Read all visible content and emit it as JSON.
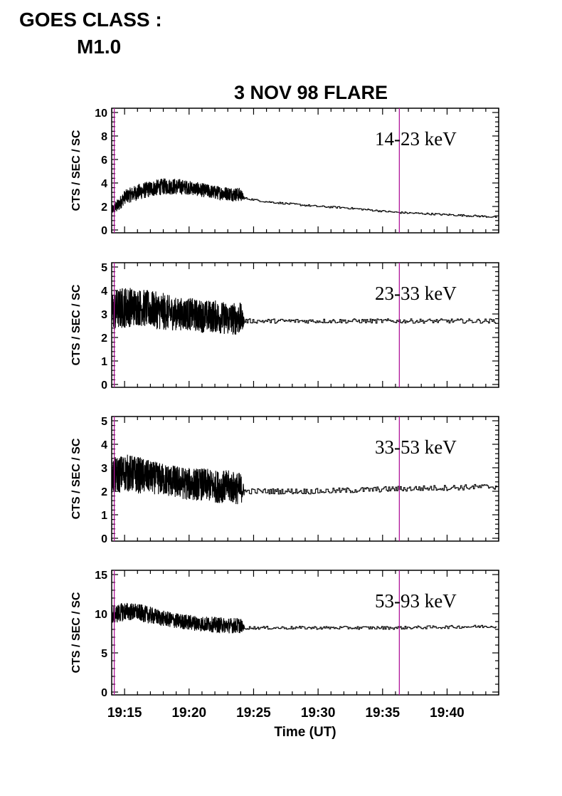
{
  "goes": {
    "line1": "GOES CLASS :",
    "line2": "M1.0"
  },
  "chart_data": {
    "type": "line",
    "title": "3 NOV 98 FLARE",
    "xlabel": "Time (UT)",
    "ylabel": "CTS / SEC / SC",
    "x_unit": "UT time (hh:mm)",
    "xlim": [
      "19:14",
      "19:44"
    ],
    "xticks": [
      "19:15",
      "19:20",
      "19:25",
      "19:30",
      "19:35",
      "19:40"
    ],
    "vertical_markers": [
      "19:14.2",
      "19:36.3"
    ],
    "marker_color": "#b0169a",
    "line_color": "#000000",
    "panels": [
      {
        "band": "14-23 keV",
        "ylim": [
          0,
          10
        ],
        "yticks": [
          "0",
          "2",
          "4",
          "6",
          "8",
          "10"
        ],
        "series": {
          "x": [
            "19:14",
            "19:14.5",
            "19:15",
            "19:16",
            "19:17",
            "19:18",
            "19:19",
            "19:20",
            "19:21",
            "19:22",
            "19:23",
            "19:24",
            "19:24.3",
            "19:26",
            "19:28",
            "19:30",
            "19:32",
            "19:34",
            "19:36",
            "19:38",
            "19:40",
            "19:42",
            "19:43.9"
          ],
          "y": [
            1.7,
            2.1,
            2.8,
            3.2,
            3.5,
            3.7,
            3.7,
            3.6,
            3.4,
            3.2,
            3.1,
            3.0,
            2.7,
            2.4,
            2.2,
            2.0,
            1.9,
            1.7,
            1.5,
            1.4,
            1.3,
            1.2,
            1.1
          ],
          "noise": [
            0.4,
            0.6,
            0.6,
            0.7,
            0.7,
            0.7,
            0.7,
            0.6,
            0.6,
            0.6,
            0.6,
            0.6,
            0.1,
            0.1,
            0.1,
            0.1,
            0.1,
            0.1,
            0.1,
            0.1,
            0.1,
            0.1,
            0.1
          ]
        }
      },
      {
        "band": "23-33 keV",
        "ylim": [
          0,
          5
        ],
        "yticks": [
          "0",
          "1",
          "2",
          "3",
          "4",
          "5"
        ],
        "series": {
          "x": [
            "19:14",
            "19:15",
            "19:16",
            "19:17",
            "19:18",
            "19:19",
            "19:20",
            "19:21",
            "19:22",
            "19:23",
            "19:24",
            "19:24.3",
            "19:30",
            "19:36",
            "19:43.9"
          ],
          "y": [
            3.1,
            3.3,
            3.3,
            3.2,
            3.1,
            3.0,
            3.0,
            2.9,
            2.9,
            2.8,
            2.8,
            2.7,
            2.7,
            2.7,
            2.7
          ],
          "noise": [
            0.9,
            0.9,
            0.8,
            0.8,
            0.8,
            0.7,
            0.7,
            0.7,
            0.7,
            0.7,
            0.7,
            0.12,
            0.12,
            0.12,
            0.12
          ]
        }
      },
      {
        "band": "33-53 keV",
        "ylim": [
          0,
          5
        ],
        "yticks": [
          "0",
          "1",
          "2",
          "3",
          "4",
          "5"
        ],
        "series": {
          "x": [
            "19:14",
            "19:15",
            "19:16",
            "19:17",
            "19:18",
            "19:19",
            "19:20",
            "19:21",
            "19:22",
            "19:23",
            "19:24",
            "19:24.3",
            "19:30",
            "19:36",
            "19:43.9"
          ],
          "y": [
            2.6,
            2.8,
            2.7,
            2.6,
            2.5,
            2.4,
            2.3,
            2.3,
            2.2,
            2.2,
            2.1,
            2.0,
            2.0,
            2.1,
            2.2
          ],
          "noise": [
            0.8,
            0.8,
            0.8,
            0.7,
            0.7,
            0.7,
            0.7,
            0.7,
            0.7,
            0.7,
            0.7,
            0.15,
            0.15,
            0.15,
            0.15
          ]
        }
      },
      {
        "band": "53-93 keV",
        "ylim": [
          0,
          15
        ],
        "yticks": [
          "0",
          "5",
          "10",
          "15"
        ],
        "series": {
          "x": [
            "19:14",
            "19:15",
            "19:16",
            "19:17",
            "19:18",
            "19:19",
            "19:20",
            "19:21",
            "19:22",
            "19:23",
            "19:24",
            "19:24.3",
            "19:30",
            "19:36",
            "19:43.9"
          ],
          "y": [
            9.8,
            10.3,
            10.2,
            9.8,
            9.4,
            9.1,
            8.9,
            8.7,
            8.6,
            8.5,
            8.5,
            8.2,
            8.2,
            8.2,
            8.4
          ],
          "noise": [
            1.2,
            1.2,
            1.1,
            1.1,
            1.0,
            1.0,
            1.0,
            1.0,
            1.0,
            1.0,
            1.0,
            0.25,
            0.25,
            0.25,
            0.25
          ]
        }
      }
    ]
  }
}
